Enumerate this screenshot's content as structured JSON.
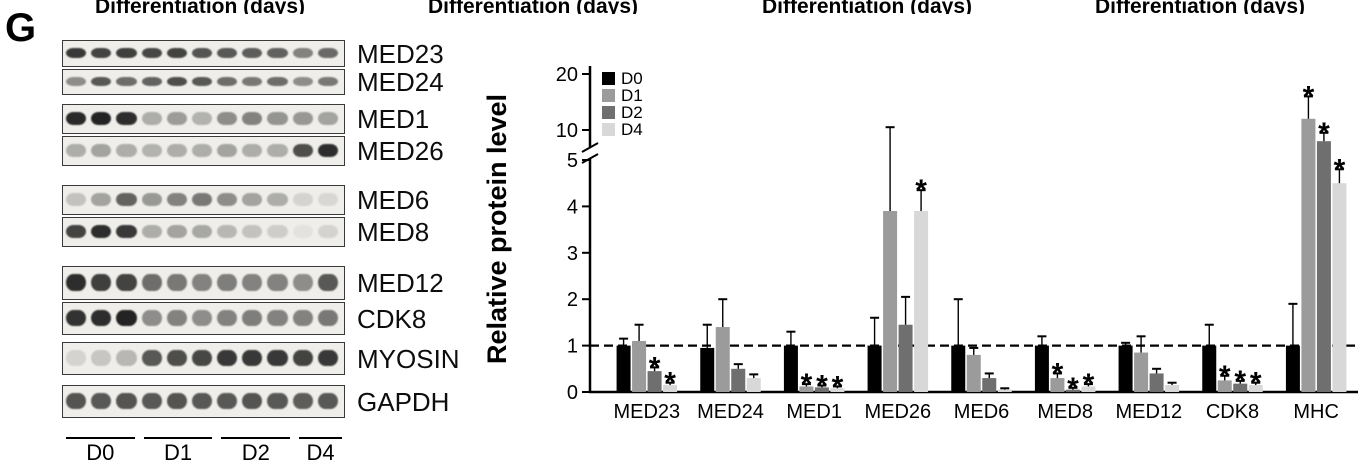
{
  "panel_label": "G",
  "clipped_top_title": "Differentiation (days)",
  "clipped_top_count": 4,
  "western_blots": {
    "rows": [
      {
        "label": "MED23",
        "bands": [
          0.85,
          0.8,
          0.82,
          0.78,
          0.8,
          0.72,
          0.7,
          0.68,
          0.66,
          0.5,
          0.62
        ]
      },
      {
        "label": "MED24",
        "bands": [
          0.45,
          0.7,
          0.6,
          0.65,
          0.75,
          0.7,
          0.6,
          0.55,
          0.6,
          0.45,
          0.55
        ]
      },
      {
        "label": "MED1",
        "bands": [
          0.92,
          0.95,
          0.9,
          0.3,
          0.38,
          0.28,
          0.45,
          0.5,
          0.42,
          0.4,
          0.35
        ]
      },
      {
        "label": "MED26",
        "bands": [
          0.3,
          0.35,
          0.3,
          0.28,
          0.3,
          0.3,
          0.35,
          0.3,
          0.3,
          0.75,
          0.9
        ]
      },
      {
        "label": "MED6",
        "bands": [
          0.2,
          0.35,
          0.65,
          0.4,
          0.5,
          0.55,
          0.45,
          0.35,
          0.3,
          0.12,
          0.1
        ]
      },
      {
        "label": "MED8",
        "bands": [
          0.8,
          0.9,
          0.85,
          0.3,
          0.35,
          0.33,
          0.25,
          0.2,
          0.15,
          0.05,
          0.12
        ]
      },
      {
        "label": "MED12",
        "bands": [
          0.9,
          0.82,
          0.8,
          0.6,
          0.55,
          0.5,
          0.52,
          0.5,
          0.5,
          0.45,
          0.7
        ]
      },
      {
        "label": "CDK8",
        "bands": [
          0.88,
          0.9,
          0.95,
          0.45,
          0.5,
          0.45,
          0.5,
          0.52,
          0.5,
          0.5,
          0.55
        ]
      },
      {
        "label": "MYOSIN",
        "bands": [
          0.12,
          0.18,
          0.25,
          0.7,
          0.75,
          0.78,
          0.85,
          0.85,
          0.85,
          0.8,
          0.85
        ]
      },
      {
        "label": "GAPDH",
        "bands": [
          0.72,
          0.7,
          0.72,
          0.7,
          0.72,
          0.7,
          0.7,
          0.72,
          0.7,
          0.68,
          0.7
        ]
      }
    ],
    "lane_groups": [
      {
        "label": "D0",
        "lanes": 3
      },
      {
        "label": "D1",
        "lanes": 3
      },
      {
        "label": "D2",
        "lanes": 3
      },
      {
        "label": "D4",
        "lanes": 2
      }
    ]
  },
  "chart_data": {
    "type": "bar",
    "title": "",
    "xlabel": "",
    "ylabel": "Relative protein level",
    "categories": [
      "MED23",
      "MED24",
      "MED1",
      "MED26",
      "MED6",
      "MED8",
      "MED12",
      "CDK8",
      "MHC"
    ],
    "series": [
      {
        "name": "D0",
        "color": "#000000",
        "values": [
          1,
          0.95,
          1,
          1,
          1,
          1,
          1,
          1,
          1
        ],
        "errors": [
          0.15,
          0.5,
          0.3,
          0.6,
          1.0,
          0.2,
          0.06,
          0.45,
          0.9
        ]
      },
      {
        "name": "D1",
        "color": "#9b9b9b",
        "values": [
          1.1,
          1.4,
          0.12,
          3.9,
          0.8,
          0.3,
          0.85,
          0.25,
          12
        ],
        "errors": [
          0.35,
          0.6,
          0.05,
          6.6,
          0.15,
          0.1,
          0.35,
          0.1,
          4
        ]
      },
      {
        "name": "D2",
        "color": "#6f6f6f",
        "values": [
          0.45,
          0.5,
          0.1,
          1.45,
          0.3,
          0.05,
          0.4,
          0.18,
          8
        ],
        "errors": [
          0.08,
          0.1,
          0.04,
          0.6,
          0.1,
          0.04,
          0.1,
          0.06,
          1.5
        ]
      },
      {
        "name": "D4",
        "color": "#d8d8d8",
        "values": [
          0.15,
          0.3,
          0.08,
          3.9,
          0.05,
          0.12,
          0.15,
          0.15,
          4.5
        ],
        "errors": [
          0.05,
          0.08,
          0.04,
          0.45,
          0.03,
          0.05,
          0.05,
          0.05,
          0.3
        ]
      }
    ],
    "y_axis": {
      "linear_ticks": [
        0,
        1,
        2,
        3,
        4,
        5
      ],
      "broken_ticks": [
        10,
        20
      ],
      "break_between": [
        5,
        10
      ],
      "ylim": [
        0,
        20
      ]
    },
    "reference_line": 1,
    "grid": false,
    "legend_position": "top-left-inside",
    "significance": [
      {
        "category": "MED23",
        "series": "D2",
        "mark": "*"
      },
      {
        "category": "MED23",
        "series": "D4",
        "mark": "*"
      },
      {
        "category": "MED1",
        "series": "D1",
        "mark": "*"
      },
      {
        "category": "MED1",
        "series": "D2",
        "mark": "*"
      },
      {
        "category": "MED1",
        "series": "D4",
        "mark": "*"
      },
      {
        "category": "MED26",
        "series": "D4",
        "mark": "*"
      },
      {
        "category": "MED8",
        "series": "D1",
        "mark": "*"
      },
      {
        "category": "MED8",
        "series": "D2",
        "mark": "*"
      },
      {
        "category": "MED8",
        "series": "D4",
        "mark": "*"
      },
      {
        "category": "CDK8",
        "series": "D1",
        "mark": "*"
      },
      {
        "category": "CDK8",
        "series": "D2",
        "mark": "*"
      },
      {
        "category": "CDK8",
        "series": "D4",
        "mark": "*"
      },
      {
        "category": "MHC",
        "series": "D1",
        "mark": "*"
      },
      {
        "category": "MHC",
        "series": "D2",
        "mark": "*"
      },
      {
        "category": "MHC",
        "series": "D4",
        "mark": "*"
      }
    ]
  }
}
